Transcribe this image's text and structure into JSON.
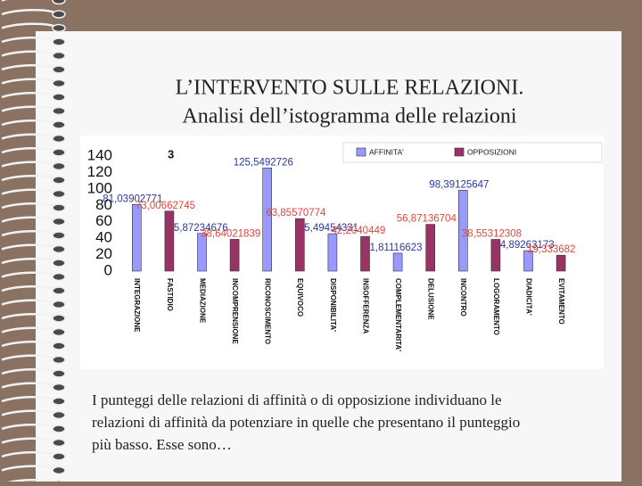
{
  "slide": {
    "title_lines": [
      "L’INTERVENTO SULLE RELAZIONI.",
      "Analisi dell’istogramma delle relazioni"
    ],
    "body_lines": [
      "I punteggi delle relazioni di affinità o di opposizione individuano le",
      "relazioni di affinità da potenziare in quelle che presentano il punteggio",
      "più basso. Esse sono…"
    ]
  },
  "chart_data": {
    "type": "bar",
    "annotation": "3",
    "categories": [
      "INTEGRAZIONE",
      "FASTIDIO",
      "MEDIAZIONE",
      "INCOMPRENSIONE",
      "RICONOSCIMENTO",
      "EQUIVOCO",
      "DISPONIBILITA'",
      "INSOFFERENZA",
      "COMPLEMENTARITA'",
      "DELUSIONE",
      "INCONTRO",
      "LOGORAMENTO",
      "DIADICITA'",
      "EVITAMENTO"
    ],
    "series": [
      {
        "name": "AFFINITA'",
        "color": "#9999ff",
        "label_color": "#2a3a9a",
        "values": [
          81.03902771,
          null,
          45.87234676,
          null,
          125.5492726,
          null,
          45.49454331,
          null,
          21.81116623,
          null,
          98.39125647,
          null,
          24.89263173,
          null
        ],
        "value_labels": [
          "81,03902771",
          null,
          "45,87234676",
          null,
          "125,5492726",
          null,
          "45,49454331",
          null,
          "21,81116623",
          null,
          "98,39125647",
          null,
          "24,89263173",
          null
        ]
      },
      {
        "name": "OPPOSIZIONI",
        "color": "#993366",
        "label_color": "#e0443a",
        "values": [
          null,
          73.00662745,
          null,
          38.64021839,
          null,
          63.85570774,
          null,
          42.2040449,
          null,
          56.87136704,
          null,
          38.55312308,
          null,
          19.333682
        ],
        "value_labels": [
          null,
          "73,00662745",
          null,
          "38,64021839",
          null,
          "63,85570774",
          null,
          "42,2040449",
          null,
          "56,87136704",
          null,
          "38,55312308",
          null,
          "19,333682"
        ]
      }
    ],
    "ylim": [
      0,
      140
    ],
    "yticks": [
      0,
      20,
      40,
      60,
      80,
      100,
      120,
      140
    ],
    "grid": false,
    "legend": "top-right"
  }
}
